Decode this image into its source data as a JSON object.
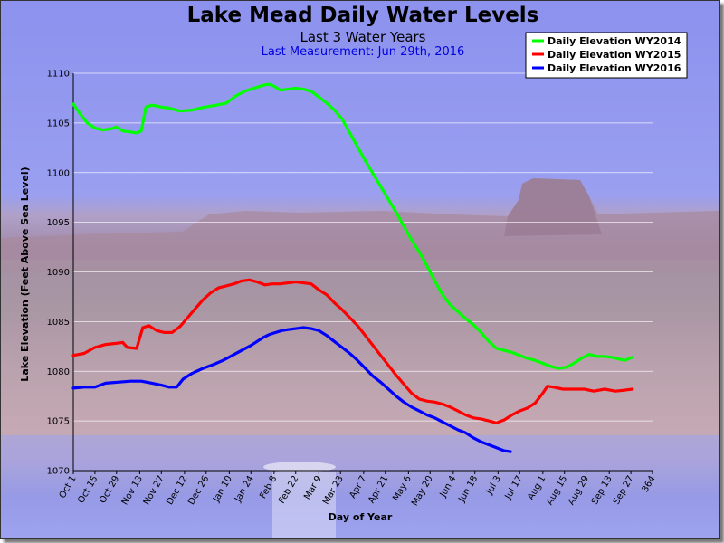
{
  "chart_data": {
    "type": "line",
    "title": "Lake Mead Daily Water Levels",
    "subtitle": "Last 3 Water Years",
    "subtitle2": "Last Measurement: Jun 29th, 2016",
    "xlabel": "Day of Year",
    "ylabel": "Lake Elevation (Feet Above Sea Level)",
    "xlim": [
      1,
      364
    ],
    "ylim": [
      1070,
      1110
    ],
    "yticks": [
      1070,
      1075,
      1080,
      1085,
      1090,
      1095,
      1100,
      1105,
      1110
    ],
    "xticks": [
      {
        "d": 1,
        "label": "Oct 1"
      },
      {
        "d": 15,
        "label": "Oct 15"
      },
      {
        "d": 29,
        "label": "Oct 29"
      },
      {
        "d": 44,
        "label": "Nov 13"
      },
      {
        "d": 58,
        "label": "Nov 27"
      },
      {
        "d": 73,
        "label": "Dec 12"
      },
      {
        "d": 87,
        "label": "Dec 26"
      },
      {
        "d": 102,
        "label": "Jan 10"
      },
      {
        "d": 116,
        "label": "Jan 24"
      },
      {
        "d": 131,
        "label": "Feb 8"
      },
      {
        "d": 145,
        "label": "Feb 22"
      },
      {
        "d": 160,
        "label": "Mar 9"
      },
      {
        "d": 174,
        "label": "Mar 23"
      },
      {
        "d": 189,
        "label": "Apr 7"
      },
      {
        "d": 203,
        "label": "Apr 21"
      },
      {
        "d": 218,
        "label": "May 6"
      },
      {
        "d": 232,
        "label": "May 20"
      },
      {
        "d": 247,
        "label": "Jun 4"
      },
      {
        "d": 261,
        "label": "Jun 18"
      },
      {
        "d": 276,
        "label": "Jul 3"
      },
      {
        "d": 290,
        "label": "Jul 17"
      },
      {
        "d": 305,
        "label": "Aug 1"
      },
      {
        "d": 319,
        "label": "Aug 15"
      },
      {
        "d": 333,
        "label": "Aug 29"
      },
      {
        "d": 348,
        "label": "Sep 13"
      },
      {
        "d": 362,
        "label": "Sep 27"
      },
      {
        "d": 376,
        "label": "364"
      }
    ],
    "grid": true,
    "legend_position": "top-right",
    "series": [
      {
        "name": "Daily Elevation WY2014",
        "color": "#00ff00",
        "points": [
          [
            1,
            1106.9
          ],
          [
            5,
            1106.0
          ],
          [
            10,
            1105.0
          ],
          [
            15,
            1104.5
          ],
          [
            20,
            1104.3
          ],
          [
            25,
            1104.4
          ],
          [
            29,
            1104.6
          ],
          [
            33,
            1104.2
          ],
          [
            38,
            1104.1
          ],
          [
            42,
            1104.0
          ],
          [
            45,
            1104.2
          ],
          [
            48,
            1106.6
          ],
          [
            52,
            1106.8
          ],
          [
            58,
            1106.6
          ],
          [
            63,
            1106.5
          ],
          [
            70,
            1106.2
          ],
          [
            78,
            1106.3
          ],
          [
            86,
            1106.6
          ],
          [
            94,
            1106.8
          ],
          [
            100,
            1107.0
          ],
          [
            106,
            1107.7
          ],
          [
            112,
            1108.2
          ],
          [
            118,
            1108.5
          ],
          [
            124,
            1108.8
          ],
          [
            128,
            1108.9
          ],
          [
            131,
            1108.7
          ],
          [
            135,
            1108.3
          ],
          [
            140,
            1108.4
          ],
          [
            145,
            1108.5
          ],
          [
            150,
            1108.4
          ],
          [
            155,
            1108.2
          ],
          [
            160,
            1107.6
          ],
          [
            165,
            1107.0
          ],
          [
            170,
            1106.3
          ],
          [
            175,
            1105.4
          ],
          [
            180,
            1104.0
          ],
          [
            185,
            1102.6
          ],
          [
            190,
            1101.2
          ],
          [
            195,
            1099.9
          ],
          [
            200,
            1098.6
          ],
          [
            205,
            1097.3
          ],
          [
            210,
            1096.0
          ],
          [
            215,
            1094.6
          ],
          [
            220,
            1093.2
          ],
          [
            225,
            1092.0
          ],
          [
            230,
            1090.6
          ],
          [
            235,
            1089.1
          ],
          [
            240,
            1087.7
          ],
          [
            245,
            1086.7
          ],
          [
            250,
            1086.0
          ],
          [
            255,
            1085.3
          ],
          [
            260,
            1084.7
          ],
          [
            265,
            1083.9
          ],
          [
            270,
            1083.0
          ],
          [
            275,
            1082.3
          ],
          [
            280,
            1082.1
          ],
          [
            285,
            1081.9
          ],
          [
            290,
            1081.6
          ],
          [
            295,
            1081.3
          ],
          [
            300,
            1081.1
          ],
          [
            305,
            1080.8
          ],
          [
            310,
            1080.5
          ],
          [
            315,
            1080.3
          ],
          [
            320,
            1080.4
          ],
          [
            325,
            1080.8
          ],
          [
            330,
            1081.3
          ],
          [
            335,
            1081.7
          ],
          [
            340,
            1081.5
          ],
          [
            345,
            1081.5
          ],
          [
            350,
            1081.4
          ],
          [
            355,
            1081.2
          ],
          [
            358,
            1081.1
          ],
          [
            361,
            1081.3
          ],
          [
            363,
            1081.4
          ]
        ]
      },
      {
        "name": "Daily Elevation WY2015",
        "color": "#ff0000",
        "points": [
          [
            1,
            1081.6
          ],
          [
            8,
            1081.8
          ],
          [
            15,
            1082.4
          ],
          [
            22,
            1082.7
          ],
          [
            28,
            1082.8
          ],
          [
            33,
            1082.9
          ],
          [
            36,
            1082.4
          ],
          [
            42,
            1082.3
          ],
          [
            46,
            1084.4
          ],
          [
            50,
            1084.6
          ],
          [
            55,
            1084.1
          ],
          [
            60,
            1083.9
          ],
          [
            65,
            1083.9
          ],
          [
            70,
            1084.5
          ],
          [
            75,
            1085.4
          ],
          [
            80,
            1086.3
          ],
          [
            85,
            1087.2
          ],
          [
            90,
            1087.9
          ],
          [
            95,
            1088.4
          ],
          [
            100,
            1088.6
          ],
          [
            105,
            1088.8
          ],
          [
            110,
            1089.1
          ],
          [
            115,
            1089.2
          ],
          [
            120,
            1089.0
          ],
          [
            125,
            1088.7
          ],
          [
            130,
            1088.8
          ],
          [
            135,
            1088.8
          ],
          [
            140,
            1088.9
          ],
          [
            145,
            1089.0
          ],
          [
            150,
            1088.9
          ],
          [
            155,
            1088.8
          ],
          [
            160,
            1088.2
          ],
          [
            165,
            1087.7
          ],
          [
            170,
            1086.9
          ],
          [
            175,
            1086.2
          ],
          [
            180,
            1085.4
          ],
          [
            185,
            1084.6
          ],
          [
            190,
            1083.6
          ],
          [
            195,
            1082.6
          ],
          [
            200,
            1081.6
          ],
          [
            205,
            1080.6
          ],
          [
            210,
            1079.6
          ],
          [
            215,
            1078.7
          ],
          [
            220,
            1077.8
          ],
          [
            225,
            1077.2
          ],
          [
            230,
            1077.0
          ],
          [
            235,
            1076.9
          ],
          [
            240,
            1076.7
          ],
          [
            245,
            1076.4
          ],
          [
            250,
            1076.0
          ],
          [
            255,
            1075.6
          ],
          [
            260,
            1075.3
          ],
          [
            265,
            1075.2
          ],
          [
            270,
            1075.0
          ],
          [
            275,
            1074.8
          ],
          [
            280,
            1075.1
          ],
          [
            285,
            1075.6
          ],
          [
            290,
            1076.0
          ],
          [
            295,
            1076.3
          ],
          [
            300,
            1076.8
          ],
          [
            305,
            1077.8
          ],
          [
            308,
            1078.5
          ],
          [
            312,
            1078.4
          ],
          [
            318,
            1078.2
          ],
          [
            325,
            1078.2
          ],
          [
            332,
            1078.2
          ],
          [
            338,
            1078.0
          ],
          [
            345,
            1078.2
          ],
          [
            352,
            1078.0
          ],
          [
            358,
            1078.1
          ],
          [
            363,
            1078.2
          ]
        ]
      },
      {
        "name": "Daily Elevation WY2016",
        "color": "#0000ff",
        "points": [
          [
            1,
            1078.3
          ],
          [
            8,
            1078.4
          ],
          [
            15,
            1078.4
          ],
          [
            22,
            1078.8
          ],
          [
            30,
            1078.9
          ],
          [
            38,
            1079.0
          ],
          [
            45,
            1079.0
          ],
          [
            52,
            1078.8
          ],
          [
            58,
            1078.6
          ],
          [
            63,
            1078.4
          ],
          [
            68,
            1078.4
          ],
          [
            72,
            1079.2
          ],
          [
            78,
            1079.8
          ],
          [
            85,
            1080.3
          ],
          [
            92,
            1080.7
          ],
          [
            98,
            1081.1
          ],
          [
            104,
            1081.6
          ],
          [
            110,
            1082.1
          ],
          [
            116,
            1082.6
          ],
          [
            120,
            1083.0
          ],
          [
            124,
            1083.4
          ],
          [
            128,
            1083.7
          ],
          [
            132,
            1083.9
          ],
          [
            136,
            1084.1
          ],
          [
            140,
            1084.2
          ],
          [
            145,
            1084.3
          ],
          [
            150,
            1084.4
          ],
          [
            155,
            1084.3
          ],
          [
            160,
            1084.1
          ],
          [
            165,
            1083.6
          ],
          [
            170,
            1083.0
          ],
          [
            175,
            1082.4
          ],
          [
            180,
            1081.8
          ],
          [
            185,
            1081.1
          ],
          [
            190,
            1080.3
          ],
          [
            195,
            1079.5
          ],
          [
            200,
            1078.9
          ],
          [
            205,
            1078.2
          ],
          [
            210,
            1077.5
          ],
          [
            215,
            1076.9
          ],
          [
            220,
            1076.4
          ],
          [
            225,
            1076.0
          ],
          [
            230,
            1075.6
          ],
          [
            235,
            1075.3
          ],
          [
            240,
            1074.9
          ],
          [
            245,
            1074.5
          ],
          [
            250,
            1074.1
          ],
          [
            255,
            1073.8
          ],
          [
            260,
            1073.3
          ],
          [
            265,
            1072.9
          ],
          [
            270,
            1072.6
          ],
          [
            275,
            1072.3
          ],
          [
            280,
            1072.0
          ],
          [
            284,
            1071.9
          ]
        ]
      }
    ]
  }
}
